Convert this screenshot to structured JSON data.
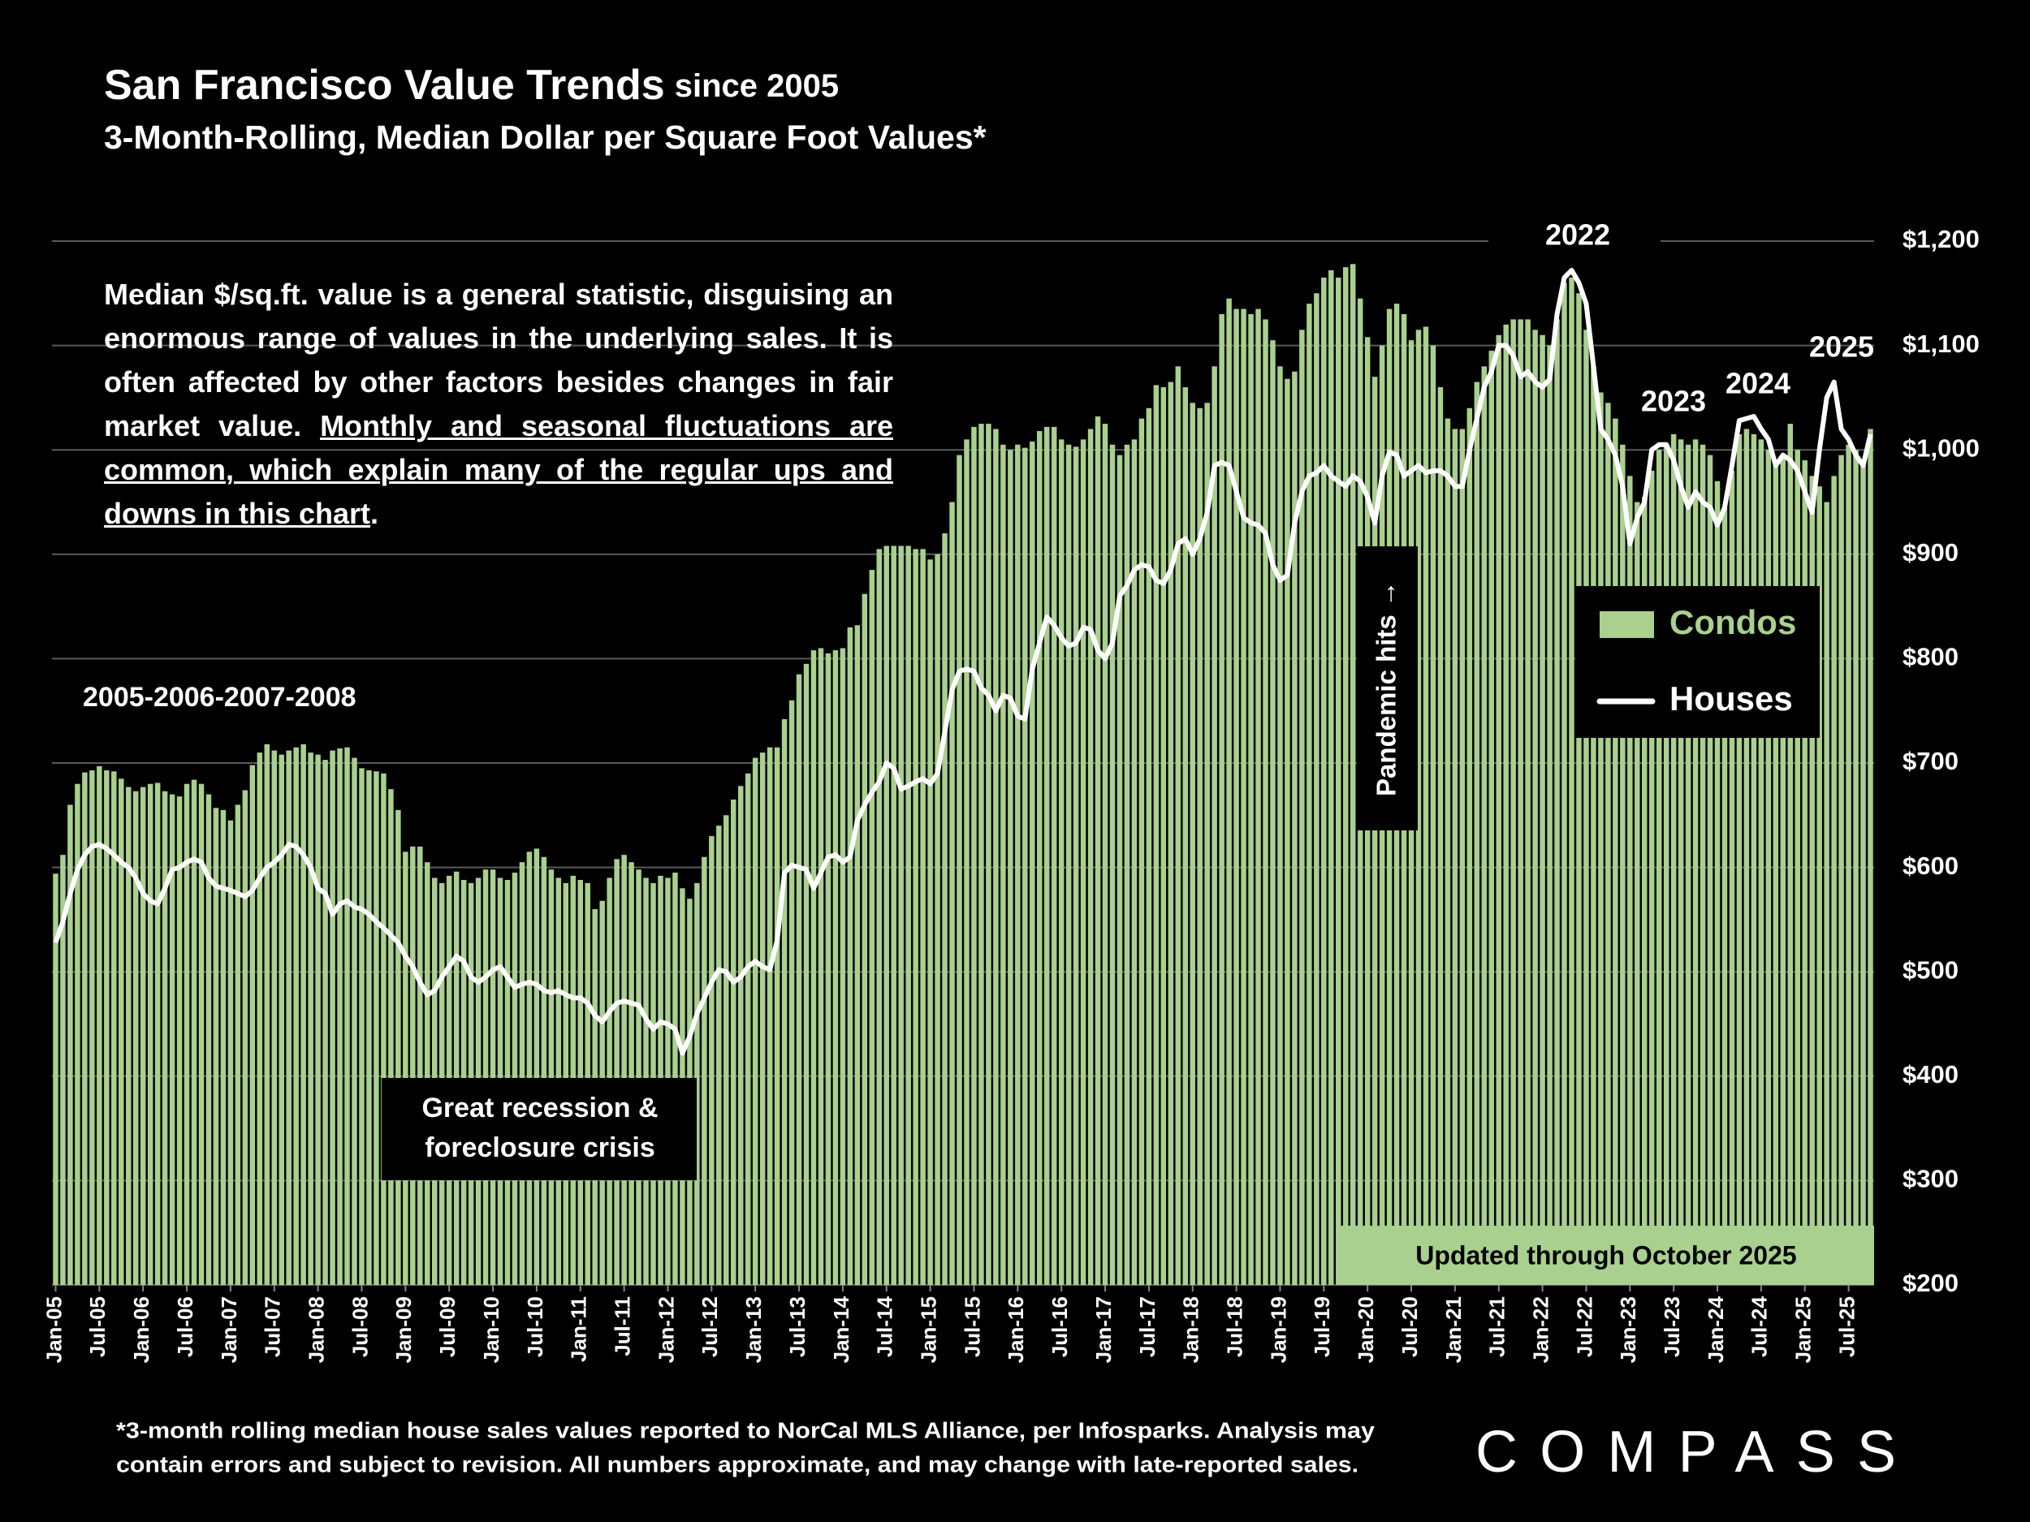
{
  "chart_data": {
    "type": "bar",
    "title": "San Francisco Value Trends",
    "title_note": "since 2005",
    "subtitle": "3-Month-Rolling, Median Dollar per Square Foot Values*",
    "categories": [
      "Jan-05",
      null,
      null,
      null,
      null,
      null,
      "Jul-05",
      null,
      null,
      null,
      null,
      null,
      "Jan-06",
      null,
      null,
      null,
      null,
      null,
      "Jul-06",
      null,
      null,
      null,
      null,
      null,
      "Jan-07",
      null,
      null,
      null,
      null,
      null,
      "Jul-07",
      null,
      null,
      null,
      null,
      null,
      "Jan-08",
      null,
      null,
      null,
      null,
      null,
      "Jul-08",
      null,
      null,
      null,
      null,
      null,
      "Jan-09",
      null,
      null,
      null,
      null,
      null,
      "Jul-09",
      null,
      null,
      null,
      null,
      null,
      "Jan-10",
      null,
      null,
      null,
      null,
      null,
      "Jul-10",
      null,
      null,
      null,
      null,
      null,
      "Jan-11",
      null,
      null,
      null,
      null,
      null,
      "Jul-11",
      null,
      null,
      null,
      null,
      null,
      "Jan-12",
      null,
      null,
      null,
      null,
      null,
      "Jul-12",
      null,
      null,
      null,
      null,
      null,
      "Jan-13",
      null,
      null,
      null,
      null,
      null,
      "Jul-13",
      null,
      null,
      null,
      null,
      null,
      "Jan-14",
      null,
      null,
      null,
      null,
      null,
      "Jul-14",
      null,
      null,
      null,
      null,
      null,
      "Jan-15",
      null,
      null,
      null,
      null,
      null,
      "Jul-15",
      null,
      null,
      null,
      null,
      null,
      "Jan-16",
      null,
      null,
      null,
      null,
      null,
      "Jul-16",
      null,
      null,
      null,
      null,
      null,
      "Jan-17",
      null,
      null,
      null,
      null,
      null,
      "Jul-17",
      null,
      null,
      null,
      null,
      null,
      "Jan-18",
      null,
      null,
      null,
      null,
      null,
      "Jul-18",
      null,
      null,
      null,
      null,
      null,
      "Jan-19",
      null,
      null,
      null,
      null,
      null,
      "Jul-19",
      null,
      null,
      null,
      null,
      null,
      "Jan-20",
      null,
      null,
      null,
      null,
      null,
      "Jul-20",
      null,
      null,
      null,
      null,
      null,
      "Jan-21",
      null,
      null,
      null,
      null,
      null,
      "Jul-21",
      null,
      null,
      null,
      null,
      null,
      "Jan-22",
      null,
      null,
      null,
      null,
      null,
      "Jul-22",
      null,
      null,
      null,
      null,
      null,
      "Jan-23",
      null,
      null,
      null,
      null,
      null,
      "Jul-23",
      null,
      null,
      null,
      null,
      null,
      "Jan-24",
      null,
      null,
      null,
      null,
      null,
      "Jul-24",
      null,
      null,
      null,
      null,
      null,
      "Jan-25",
      null,
      null,
      null,
      null,
      null,
      "Jul-25",
      null,
      null,
      null
    ],
    "series": [
      {
        "name": "Condos",
        "type": "bar",
        "color": "#a9d08e",
        "values": [
          594,
          612,
          660,
          680,
          691,
          693,
          697,
          693,
          692,
          685,
          677,
          673,
          677,
          680,
          681,
          673,
          670,
          668,
          680,
          684,
          680,
          670,
          657,
          655,
          645,
          660,
          674,
          698,
          710,
          718,
          712,
          708,
          712,
          715,
          718,
          710,
          708,
          703,
          712,
          714,
          715,
          705,
          695,
          693,
          692,
          690,
          675,
          655,
          615,
          620,
          620,
          605,
          590,
          585,
          592,
          596,
          588,
          585,
          590,
          598,
          598,
          590,
          588,
          595,
          605,
          615,
          618,
          610,
          598,
          590,
          585,
          592,
          588,
          585,
          560,
          568,
          590,
          608,
          612,
          605,
          598,
          590,
          585,
          592,
          590,
          595,
          580,
          570,
          585,
          610,
          630,
          640,
          650,
          665,
          678,
          690,
          705,
          710,
          715,
          715,
          742,
          760,
          785,
          795,
          808,
          810,
          805,
          808,
          810,
          830,
          832,
          862,
          885,
          905,
          908,
          908,
          908,
          908,
          905,
          905,
          895,
          900,
          920,
          950,
          995,
          1010,
          1022,
          1025,
          1025,
          1020,
          1005,
          1000,
          1005,
          1002,
          1008,
          1018,
          1022,
          1022,
          1010,
          1005,
          1003,
          1010,
          1020,
          1032,
          1025,
          1005,
          995,
          1005,
          1010,
          1030,
          1040,
          1062,
          1060,
          1065,
          1080,
          1060,
          1045,
          1040,
          1045,
          1080,
          1130,
          1145,
          1135,
          1135,
          1130,
          1135,
          1125,
          1105,
          1080,
          1068,
          1075,
          1115,
          1140,
          1150,
          1165,
          1172,
          1165,
          1175,
          1178,
          1145,
          1108,
          1070,
          1100,
          1135,
          1140,
          1130,
          1105,
          1115,
          1118,
          1100,
          1060,
          1030,
          1020,
          1020,
          1040,
          1065,
          1080,
          1095,
          1110,
          1120,
          1125,
          1125,
          1125,
          1115,
          1110,
          1100,
          1125,
          1160,
          1165,
          1150,
          1115,
          1080,
          1055,
          1045,
          1030,
          1005,
          975,
          950,
          955,
          980,
          1000,
          1005,
          1015,
          1010,
          1005,
          1010,
          1005,
          995,
          970,
          945,
          980,
          1015,
          1020,
          1015,
          1010,
          1000,
          990,
          995,
          1025,
          1000,
          990,
          975,
          965,
          950,
          975,
          995,
          1005,
          1000,
          990,
          1020
        ]
      },
      {
        "name": "Houses",
        "type": "line",
        "color": "#ffffff",
        "values": [
          528,
          548,
          575,
          598,
          612,
          620,
          622,
          618,
          612,
          605,
          600,
          590,
          575,
          568,
          565,
          580,
          598,
          600,
          605,
          608,
          605,
          590,
          582,
          580,
          578,
          575,
          572,
          578,
          590,
          600,
          605,
          612,
          622,
          620,
          612,
          600,
          580,
          575,
          555,
          565,
          568,
          562,
          560,
          555,
          548,
          542,
          535,
          528,
          515,
          505,
          490,
          478,
          482,
          495,
          505,
          515,
          510,
          495,
          490,
          495,
          502,
          505,
          495,
          485,
          488,
          490,
          488,
          482,
          480,
          482,
          478,
          475,
          475,
          470,
          458,
          452,
          462,
          470,
          472,
          470,
          468,
          455,
          445,
          452,
          450,
          445,
          422,
          438,
          460,
          475,
          490,
          502,
          500,
          490,
          495,
          505,
          510,
          505,
          502,
          530,
          595,
          602,
          600,
          598,
          580,
          595,
          610,
          612,
          605,
          610,
          645,
          660,
          672,
          682,
          700,
          695,
          675,
          678,
          682,
          685,
          680,
          690,
          730,
          770,
          788,
          790,
          788,
          772,
          765,
          750,
          765,
          762,
          745,
          742,
          790,
          815,
          840,
          832,
          820,
          812,
          815,
          830,
          828,
          808,
          800,
          815,
          860,
          870,
          885,
          890,
          888,
          875,
          872,
          885,
          910,
          915,
          900,
          915,
          940,
          985,
          988,
          985,
          960,
          935,
          930,
          928,
          920,
          890,
          875,
          880,
          930,
          960,
          975,
          978,
          985,
          975,
          970,
          965,
          975,
          970,
          955,
          930,
          975,
          998,
          995,
          975,
          980,
          985,
          978,
          980,
          980,
          975,
          965,
          965,
          1000,
          1030,
          1060,
          1075,
          1100,
          1100,
          1090,
          1070,
          1075,
          1065,
          1060,
          1068,
          1130,
          1165,
          1172,
          1160,
          1140,
          1080,
          1020,
          1010,
          995,
          965,
          910,
          935,
          950,
          1000,
          1005,
          1005,
          990,
          965,
          945,
          960,
          950,
          945,
          928,
          945,
          985,
          1028,
          1030,
          1032,
          1020,
          1010,
          985,
          995,
          990,
          980,
          960,
          940,
          1000,
          1050,
          1065,
          1020,
          1010,
          995,
          985,
          1015
        ]
      }
    ],
    "ylim": [
      200,
      1200
    ],
    "yticks": [
      {
        "value": 200,
        "label": "$200"
      },
      {
        "value": 300,
        "label": "$300"
      },
      {
        "value": 400,
        "label": "$400"
      },
      {
        "value": 500,
        "label": "$500"
      },
      {
        "value": 600,
        "label": "$600"
      },
      {
        "value": 700,
        "label": "$700"
      },
      {
        "value": 800,
        "label": "$800"
      },
      {
        "value": 900,
        "label": "$900"
      },
      {
        "value": 1000,
        "label": "$1,000"
      },
      {
        "value": 1100,
        "label": "$1,100"
      },
      {
        "value": 1200,
        "label": "$1,200"
      }
    ],
    "grid": true,
    "annotations": {
      "period": "2005-2006-2007-2008",
      "recession": [
        "Great recession &",
        "foreclosure crisis"
      ],
      "pandemic": "Pandemic hits →",
      "years": [
        "2022",
        "2023",
        "2024",
        "2025"
      ],
      "updated": "Updated through October 2025"
    },
    "paragraph": {
      "plain": "Median $/sq.ft. value is a general statistic, disguising an enormous range of values in the underlying sales. It is often affected by other factors besides changes in fair market value.",
      "underlined": "Monthly and seasonal fluctuations are common, which explain many of the regular ups and downs in this chart",
      "end": "."
    },
    "footnote": [
      "*3-month rolling median house sales values reported to NorCal MLS Alliance, per Infosparks. Analysis may",
      "contain errors and subject to revision. All numbers approximate, and may change with late-reported sales."
    ],
    "logo": "COMPASS"
  }
}
